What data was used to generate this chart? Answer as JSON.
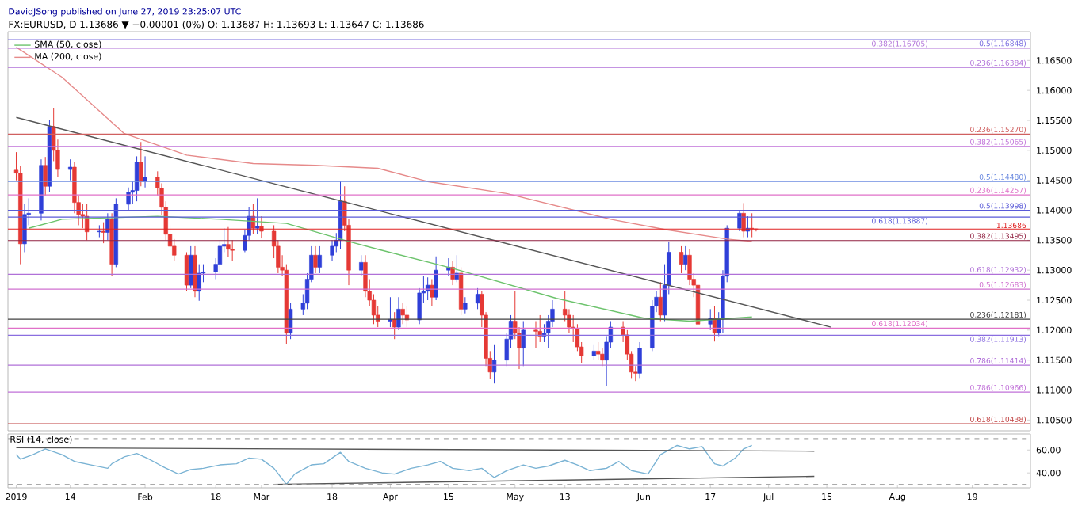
{
  "chart_data": [
    {
      "type": "candlestick",
      "title": "FX:EURUSD, D 1.13686 ▼ −0.00001 (0%) O: 1.13687 H: 1.13693 L: 1.13647 C: 1.13686",
      "annotations": [
        "DavidJSong published on June 27, 2019 23:25:07 UTC"
      ],
      "x": [
        "2019-01-01",
        "2019-01-02",
        "2019-01-03",
        "2019-01-04",
        "2019-01-07",
        "2019-01-08",
        "2019-01-09",
        "2019-01-10",
        "2019-01-11",
        "2019-01-14",
        "2019-01-15",
        "2019-01-16",
        "2019-01-17",
        "2019-01-18",
        "2019-01-21",
        "2019-01-22",
        "2019-01-23",
        "2019-01-24",
        "2019-01-25",
        "2019-01-28",
        "2019-01-29",
        "2019-01-30",
        "2019-01-31",
        "2019-02-01",
        "2019-02-04",
        "2019-02-05",
        "2019-02-06",
        "2019-02-07",
        "2019-02-08",
        "2019-02-11",
        "2019-02-12",
        "2019-02-13",
        "2019-02-14",
        "2019-02-15",
        "2019-02-18",
        "2019-02-19",
        "2019-02-20",
        "2019-02-21",
        "2019-02-22",
        "2019-02-25",
        "2019-02-26",
        "2019-02-27",
        "2019-02-28",
        "2019-03-01",
        "2019-03-04",
        "2019-03-05",
        "2019-03-06",
        "2019-03-07",
        "2019-03-08",
        "2019-03-11",
        "2019-03-12",
        "2019-03-13",
        "2019-03-14",
        "2019-03-15",
        "2019-03-18",
        "2019-03-19",
        "2019-03-20",
        "2019-03-21",
        "2019-03-22",
        "2019-03-25",
        "2019-03-26",
        "2019-03-27",
        "2019-03-28",
        "2019-03-29",
        "2019-04-01",
        "2019-04-02",
        "2019-04-03",
        "2019-04-04",
        "2019-04-05",
        "2019-04-08",
        "2019-04-09",
        "2019-04-10",
        "2019-04-11",
        "2019-04-12",
        "2019-04-15",
        "2019-04-16",
        "2019-04-17",
        "2019-04-18",
        "2019-04-19",
        "2019-04-22",
        "2019-04-23",
        "2019-04-24",
        "2019-04-25",
        "2019-04-26",
        "2019-04-29",
        "2019-04-30",
        "2019-05-01",
        "2019-05-02",
        "2019-05-03",
        "2019-05-06",
        "2019-05-07",
        "2019-05-08",
        "2019-05-09",
        "2019-05-10",
        "2019-05-13",
        "2019-05-14",
        "2019-05-15",
        "2019-05-16",
        "2019-05-17",
        "2019-05-20",
        "2019-05-21",
        "2019-05-22",
        "2019-05-23",
        "2019-05-24",
        "2019-05-27",
        "2019-05-28",
        "2019-05-29",
        "2019-05-30",
        "2019-05-31",
        "2019-06-03",
        "2019-06-04",
        "2019-06-05",
        "2019-06-06",
        "2019-06-07",
        "2019-06-10",
        "2019-06-11",
        "2019-06-12",
        "2019-06-13",
        "2019-06-14",
        "2019-06-17",
        "2019-06-18",
        "2019-06-19",
        "2019-06-20",
        "2019-06-21",
        "2019-06-24",
        "2019-06-25",
        "2019-06-26",
        "2019-06-27",
        "2019-06-28"
      ],
      "ohlc": [
        [
          1.1467,
          1.1497,
          1.145,
          1.1462
        ],
        [
          1.1462,
          1.1474,
          1.131,
          1.1344
        ],
        [
          1.1344,
          1.141,
          1.133,
          1.1393
        ],
        [
          1.1393,
          1.142,
          1.1375,
          1.1395
        ],
        [
          1.1395,
          1.1485,
          1.1383,
          1.1475
        ],
        [
          1.1475,
          1.1489,
          1.1425,
          1.144
        ],
        [
          1.144,
          1.155,
          1.143,
          1.154
        ],
        [
          1.154,
          1.157,
          1.1482,
          1.15
        ],
        [
          1.15,
          1.1518,
          1.1455,
          1.1468
        ],
        [
          1.1468,
          1.1485,
          1.145,
          1.1472
        ],
        [
          1.1472,
          1.148,
          1.1395,
          1.1413
        ],
        [
          1.1413,
          1.1425,
          1.1375,
          1.1393
        ],
        [
          1.1393,
          1.141,
          1.137,
          1.139
        ],
        [
          1.139,
          1.141,
          1.135,
          1.1364
        ],
        [
          1.1364,
          1.1375,
          1.1355,
          1.1365
        ],
        [
          1.1365,
          1.138,
          1.1345,
          1.1363
        ],
        [
          1.1363,
          1.1395,
          1.135,
          1.1385
        ],
        [
          1.1385,
          1.1395,
          1.129,
          1.131
        ],
        [
          1.131,
          1.142,
          1.1305,
          1.141
        ],
        [
          1.141,
          1.1438,
          1.14,
          1.143
        ],
        [
          1.143,
          1.1448,
          1.141,
          1.1433
        ],
        [
          1.1433,
          1.149,
          1.1415,
          1.148
        ],
        [
          1.148,
          1.1514,
          1.144,
          1.1448
        ],
        [
          1.1448,
          1.149,
          1.1438,
          1.1455
        ],
        [
          1.1455,
          1.1465,
          1.1425,
          1.1437
        ],
        [
          1.1437,
          1.1445,
          1.1392,
          1.1405
        ],
        [
          1.1405,
          1.1415,
          1.135,
          1.136
        ],
        [
          1.136,
          1.1375,
          1.1325,
          1.134
        ],
        [
          1.134,
          1.1352,
          1.1315,
          1.1325
        ],
        [
          1.1325,
          1.133,
          1.1265,
          1.1275
        ],
        [
          1.1275,
          1.134,
          1.127,
          1.1325
        ],
        [
          1.1325,
          1.134,
          1.1255,
          1.1265
        ],
        [
          1.1265,
          1.131,
          1.1249,
          1.1295
        ],
        [
          1.1295,
          1.131,
          1.128,
          1.1297
        ],
        [
          1.1297,
          1.132,
          1.1285,
          1.131
        ],
        [
          1.131,
          1.135,
          1.1295,
          1.134
        ],
        [
          1.134,
          1.137,
          1.133,
          1.1343
        ],
        [
          1.1343,
          1.1372,
          1.1322,
          1.1335
        ],
        [
          1.1335,
          1.135,
          1.1315,
          1.1333
        ],
        [
          1.1333,
          1.1368,
          1.133,
          1.1358
        ],
        [
          1.1358,
          1.1405,
          1.135,
          1.139
        ],
        [
          1.139,
          1.141,
          1.136,
          1.137
        ],
        [
          1.137,
          1.142,
          1.136,
          1.1373
        ],
        [
          1.1373,
          1.139,
          1.1353,
          1.1365
        ],
        [
          1.1365,
          1.1375,
          1.132,
          1.134
        ],
        [
          1.134,
          1.135,
          1.1295,
          1.1305
        ],
        [
          1.1305,
          1.1325,
          1.129,
          1.13
        ],
        [
          1.13,
          1.131,
          1.1176,
          1.1195
        ],
        [
          1.1195,
          1.1245,
          1.1185,
          1.1235
        ],
        [
          1.1235,
          1.126,
          1.1225,
          1.1245
        ],
        [
          1.1245,
          1.1295,
          1.1235,
          1.1285
        ],
        [
          1.1285,
          1.134,
          1.128,
          1.1325
        ],
        [
          1.1325,
          1.134,
          1.1295,
          1.1305
        ],
        [
          1.1305,
          1.134,
          1.1295,
          1.1325
        ],
        [
          1.1325,
          1.135,
          1.1315,
          1.134
        ],
        [
          1.134,
          1.1362,
          1.133,
          1.135
        ],
        [
          1.135,
          1.1448,
          1.1335,
          1.1415
        ],
        [
          1.1415,
          1.144,
          1.1365,
          1.1375
        ],
        [
          1.1375,
          1.1385,
          1.1275,
          1.13
        ],
        [
          1.13,
          1.1325,
          1.129,
          1.1313
        ],
        [
          1.1313,
          1.1325,
          1.1255,
          1.1265
        ],
        [
          1.1265,
          1.1285,
          1.124,
          1.125
        ],
        [
          1.125,
          1.126,
          1.121,
          1.1225
        ],
        [
          1.1225,
          1.124,
          1.1205,
          1.1215
        ],
        [
          1.1215,
          1.1255,
          1.1205,
          1.1218
        ],
        [
          1.1218,
          1.123,
          1.1185,
          1.1205
        ],
        [
          1.1205,
          1.1255,
          1.12,
          1.1235
        ],
        [
          1.1235,
          1.1245,
          1.121,
          1.1225
        ],
        [
          1.1225,
          1.124,
          1.1205,
          1.1217
        ],
        [
          1.1217,
          1.127,
          1.121,
          1.1262
        ],
        [
          1.1262,
          1.129,
          1.1245,
          1.1265
        ],
        [
          1.1265,
          1.1288,
          1.125,
          1.1275
        ],
        [
          1.1275,
          1.1285,
          1.124,
          1.1255
        ],
        [
          1.1255,
          1.1323,
          1.125,
          1.13
        ],
        [
          1.13,
          1.132,
          1.129,
          1.1305
        ],
        [
          1.1305,
          1.1315,
          1.1275,
          1.1285
        ],
        [
          1.1285,
          1.1325,
          1.128,
          1.1295
        ],
        [
          1.1295,
          1.1305,
          1.1225,
          1.1235
        ],
        [
          1.1235,
          1.1255,
          1.1228,
          1.1245
        ],
        [
          1.1245,
          1.127,
          1.1235,
          1.126
        ],
        [
          1.126,
          1.1265,
          1.1205,
          1.1225
        ],
        [
          1.1225,
          1.123,
          1.114,
          1.1153
        ],
        [
          1.1153,
          1.1165,
          1.1118,
          1.113
        ],
        [
          1.113,
          1.1175,
          1.1111,
          1.115
        ],
        [
          1.115,
          1.1195,
          1.114,
          1.1185
        ],
        [
          1.1185,
          1.1225,
          1.117,
          1.1215
        ],
        [
          1.1215,
          1.1265,
          1.1185,
          1.1195
        ],
        [
          1.1195,
          1.1205,
          1.1135,
          1.117
        ],
        [
          1.117,
          1.1215,
          1.114,
          1.12
        ],
        [
          1.12,
          1.1215,
          1.117,
          1.1198
        ],
        [
          1.1198,
          1.1225,
          1.118,
          1.119
        ],
        [
          1.119,
          1.121,
          1.118,
          1.1195
        ],
        [
          1.1195,
          1.1225,
          1.117,
          1.1215
        ],
        [
          1.1215,
          1.125,
          1.1205,
          1.1235
        ],
        [
          1.1235,
          1.1265,
          1.1215,
          1.1225
        ],
        [
          1.1225,
          1.1235,
          1.1195,
          1.1205
        ],
        [
          1.1205,
          1.1225,
          1.118,
          1.1203
        ],
        [
          1.1203,
          1.121,
          1.1165,
          1.1172
        ],
        [
          1.1172,
          1.118,
          1.1145,
          1.1157
        ],
        [
          1.1157,
          1.1175,
          1.115,
          1.1165
        ],
        [
          1.1165,
          1.118,
          1.115,
          1.116
        ],
        [
          1.116,
          1.117,
          1.114,
          1.115
        ],
        [
          1.115,
          1.119,
          1.1107,
          1.118
        ],
        [
          1.118,
          1.1215,
          1.117,
          1.1205
        ],
        [
          1.1205,
          1.1215,
          1.118,
          1.1192
        ],
        [
          1.1192,
          1.12,
          1.115,
          1.116
        ],
        [
          1.116,
          1.1165,
          1.112,
          1.113
        ],
        [
          1.113,
          1.114,
          1.1115,
          1.1128
        ],
        [
          1.1128,
          1.118,
          1.112,
          1.117
        ],
        [
          1.117,
          1.125,
          1.1165,
          1.124
        ],
        [
          1.124,
          1.1265,
          1.123,
          1.1255
        ],
        [
          1.1255,
          1.128,
          1.1215,
          1.1225
        ],
        [
          1.1225,
          1.131,
          1.1215,
          1.1275
        ],
        [
          1.1275,
          1.1348,
          1.126,
          1.133
        ],
        [
          1.133,
          1.134,
          1.1295,
          1.131
        ],
        [
          1.131,
          1.134,
          1.13,
          1.1325
        ],
        [
          1.1325,
          1.1335,
          1.1275,
          1.1285
        ],
        [
          1.1285,
          1.1295,
          1.1255,
          1.1275
        ],
        [
          1.1275,
          1.128,
          1.12,
          1.121
        ],
        [
          1.121,
          1.1235,
          1.12,
          1.122
        ],
        [
          1.122,
          1.124,
          1.1181,
          1.1195
        ],
        [
          1.1195,
          1.123,
          1.119,
          1.122
        ],
        [
          1.122,
          1.13,
          1.1195,
          1.129
        ],
        [
          1.129,
          1.1375,
          1.128,
          1.137
        ],
        [
          1.137,
          1.14,
          1.1365,
          1.1395
        ],
        [
          1.1395,
          1.1412,
          1.1355,
          1.1365
        ],
        [
          1.1365,
          1.139,
          1.1355,
          1.137
        ],
        [
          1.137,
          1.1395,
          1.1355,
          1.1369
        ],
        [
          1.13687,
          1.13693,
          1.13647,
          1.13686
        ]
      ],
      "colors": [
        "#e53935",
        "#e53935",
        "#2f3fd8",
        "#2f3fd8",
        "#2f3fd8",
        "#e53935",
        "#2f3fd8",
        "#e53935",
        "#e53935",
        "#2f3fd8",
        "#e53935",
        "#e53935",
        "#e53935",
        "#e53935",
        "#2f3fd8",
        "#e53935",
        "#2f3fd8",
        "#e53935",
        "#2f3fd8",
        "#2f3fd8",
        "#2f3fd8",
        "#2f3fd8",
        "#e53935",
        "#2f3fd8",
        "#e53935",
        "#e53935",
        "#e53935",
        "#e53935",
        "#e53935",
        "#e53935",
        "#2f3fd8",
        "#e53935",
        "#2f3fd8",
        "#2f3fd8",
        "#2f3fd8",
        "#2f3fd8",
        "#2f3fd8",
        "#e53935",
        "#e53935",
        "#2f3fd8",
        "#2f3fd8",
        "#e53935",
        "#2f3fd8",
        "#e53935",
        "#e53935",
        "#e53935",
        "#e53935",
        "#e53935",
        "#2f3fd8",
        "#2f3fd8",
        "#2f3fd8",
        "#2f3fd8",
        "#e53935",
        "#2f3fd8",
        "#2f3fd8",
        "#2f3fd8",
        "#2f3fd8",
        "#e53935",
        "#e53935",
        "#2f3fd8",
        "#e53935",
        "#e53935",
        "#e53935",
        "#e53935",
        "#2f3fd8",
        "#e53935",
        "#2f3fd8",
        "#e53935",
        "#e53935",
        "#2f3fd8",
        "#2f3fd8",
        "#2f3fd8",
        "#e53935",
        "#2f3fd8",
        "#2f3fd8",
        "#e53935",
        "#2f3fd8",
        "#e53935",
        "#2f3fd8",
        "#2f3fd8",
        "#e53935",
        "#e53935",
        "#e53935",
        "#2f3fd8",
        "#2f3fd8",
        "#2f3fd8",
        "#e53935",
        "#e53935",
        "#2f3fd8",
        "#e53935",
        "#e53935",
        "#2f3fd8",
        "#2f3fd8",
        "#2f3fd8",
        "#e53935",
        "#e53935",
        "#e53935",
        "#e53935",
        "#e53935",
        "#2f3fd8",
        "#e53935",
        "#e53935",
        "#2f3fd8",
        "#2f3fd8",
        "#e53935",
        "#e53935",
        "#e53935",
        "#e53935",
        "#2f3fd8",
        "#2f3fd8",
        "#2f3fd8",
        "#e53935",
        "#2f3fd8",
        "#2f3fd8",
        "#e53935",
        "#2f3fd8",
        "#e53935",
        "#e53935",
        "#e53935",
        "#2f3fd8",
        "#e53935",
        "#2f3fd8",
        "#2f3fd8",
        "#2f3fd8",
        "#2f3fd8",
        "#e53935",
        "#2f3fd8",
        "#e53935",
        "#e53935"
      ],
      "series": [
        {
          "type": "line",
          "name": "SMA (50, close)",
          "color": "#6cc36c",
          "x": [
            "2019-01-04",
            "2019-01-12",
            "2019-02-04",
            "2019-02-19",
            "2019-03-07",
            "2019-03-22",
            "2019-03-29",
            "2019-04-16",
            "2019-05-11",
            "2019-06-01",
            "2019-06-12",
            "2019-06-27"
          ],
          "values": [
            1.137,
            1.1385,
            1.139,
            1.1385,
            1.1378,
            1.1348,
            1.1335,
            1.1303,
            1.1253,
            1.122,
            1.1215,
            1.1222
          ]
        },
        {
          "type": "line",
          "name": "MA (200, close)",
          "color": "#e68a8a",
          "x": [
            "2019-01-01",
            "2019-01-12",
            "2019-01-27",
            "2019-02-11",
            "2019-02-27",
            "2019-03-14",
            "2019-03-29",
            "2019-04-10",
            "2019-04-29",
            "2019-05-24",
            "2019-06-06",
            "2019-06-21",
            "2019-06-27"
          ],
          "values": [
            1.1672,
            1.1622,
            1.1528,
            1.1492,
            1.1478,
            1.1475,
            1.147,
            1.1448,
            1.1428,
            1.1385,
            1.1368,
            1.1352,
            1.1348
          ]
        },
        {
          "type": "line",
          "color": "#555555",
          "x": [
            "2019-01-01",
            "2019-07-16"
          ],
          "values": [
            1.1555,
            1.1205
          ]
        }
      ],
      "xlim": [
        "2018-12-30",
        "2019-09-02"
      ],
      "ylim": [
        1.1032,
        1.1698
      ],
      "yticks": [
        {
          "value": 1.105,
          "label": "1.10500"
        },
        {
          "value": 1.11,
          "label": "1.11000"
        },
        {
          "value": 1.115,
          "label": "1.11500"
        },
        {
          "value": 1.12,
          "label": "1.12000"
        },
        {
          "value": 1.125,
          "label": "1.12500"
        },
        {
          "value": 1.13,
          "label": "1.13000"
        },
        {
          "value": 1.135,
          "label": "1.13500"
        },
        {
          "value": 1.14,
          "label": "1.14000"
        },
        {
          "value": 1.145,
          "label": "1.14500"
        },
        {
          "value": 1.15,
          "label": "1.15000"
        },
        {
          "value": 1.155,
          "label": "1.15500"
        },
        {
          "value": 1.16,
          "label": "1.16000"
        },
        {
          "value": 1.165,
          "label": "1.16500"
        }
      ],
      "tick_labels": "y",
      "legend": "top left",
      "ref_lines": [
        {
          "axis": "y",
          "value": 1.16848,
          "label": "0.5(1.16848)",
          "color": "#7a6ee0"
        },
        {
          "axis": "y",
          "value": 1.16705,
          "label": "0.382(1.16705)",
          "color": "#b070d8"
        },
        {
          "axis": "y",
          "value": 1.16384,
          "label": "0.236(1.16384)",
          "color": "#b070d8"
        },
        {
          "axis": "y",
          "value": 1.1527,
          "label": "0.236(1.15270)",
          "color": "#d06060"
        },
        {
          "axis": "y",
          "value": 1.15065,
          "label": "0.382(1.15065)",
          "color": "#c070d8"
        },
        {
          "axis": "y",
          "value": 1.1448,
          "label": "0.5(1.14480)",
          "color": "#6c8be0"
        },
        {
          "axis": "y",
          "value": 1.14257,
          "label": "0.236(1.14257)",
          "color": "#e070c8"
        },
        {
          "axis": "y",
          "value": 1.13998,
          "label": "0.5(1.13998)",
          "color": "#5a5ad8"
        },
        {
          "axis": "y",
          "value": 1.13887,
          "label": "0.618(1.13887)",
          "color": "#5a5ad8"
        },
        {
          "axis": "y",
          "value": 1.13686,
          "label": "1.13686",
          "color": "#e02020"
        },
        {
          "axis": "y",
          "value": 1.13495,
          "label": "0.382(1.13495)",
          "color": "#902040"
        },
        {
          "axis": "y",
          "value": 1.12932,
          "label": "0.618(1.12932)",
          "color": "#b070d8"
        },
        {
          "axis": "y",
          "value": 1.12683,
          "label": "0.5(1.12683)",
          "color": "#d070d0"
        },
        {
          "axis": "y",
          "value": 1.12181,
          "label": "0.236(1.12181)",
          "color": "#404040"
        },
        {
          "axis": "y",
          "value": 1.12034,
          "label": "0.618(1.12034)",
          "color": "#e070c8"
        },
        {
          "axis": "y",
          "value": 1.11913,
          "label": "0.382(1.11913)",
          "color": "#8a6ee0"
        },
        {
          "axis": "y",
          "value": 1.11414,
          "label": "0.786(1.11414)",
          "color": "#b070d8"
        },
        {
          "axis": "y",
          "value": 1.10966,
          "label": "0.786(1.10966)",
          "color": "#c070d8"
        },
        {
          "axis": "y",
          "value": 1.10438,
          "label": "0.618(1.10438)",
          "color": "#c04040"
        }
      ]
    },
    {
      "type": "line",
      "title": "RSI (14, close)",
      "series": [
        {
          "color": "#7ab3d4",
          "x": [
            "2019-01-01",
            "2019-01-02",
            "2019-01-05",
            "2019-01-08",
            "2019-01-12",
            "2019-01-15",
            "2019-01-19",
            "2019-01-23",
            "2019-01-24",
            "2019-01-27",
            "2019-01-30",
            "2019-02-02",
            "2019-02-05",
            "2019-02-09",
            "2019-02-12",
            "2019-02-15",
            "2019-02-19",
            "2019-02-23",
            "2019-02-26",
            "2019-03-01",
            "2019-03-04",
            "2019-03-07",
            "2019-03-09",
            "2019-03-13",
            "2019-03-16",
            "2019-03-20",
            "2019-03-22",
            "2019-03-26",
            "2019-03-30",
            "2019-04-02",
            "2019-04-06",
            "2019-04-10",
            "2019-04-13",
            "2019-04-16",
            "2019-04-20",
            "2019-04-23",
            "2019-04-26",
            "2019-04-29",
            "2019-05-03",
            "2019-05-06",
            "2019-05-09",
            "2019-05-13",
            "2019-05-16",
            "2019-05-19",
            "2019-05-23",
            "2019-05-26",
            "2019-05-29",
            "2019-06-02",
            "2019-06-05",
            "2019-06-09",
            "2019-06-12",
            "2019-06-15",
            "2019-06-18",
            "2019-06-20",
            "2019-06-23",
            "2019-06-25",
            "2019-06-27"
          ],
          "values": [
            56,
            52,
            56,
            61,
            56,
            50,
            47,
            44,
            48,
            54,
            57,
            52,
            46,
            39,
            43,
            44,
            47,
            48,
            53,
            52,
            44,
            30,
            39,
            47,
            48,
            58,
            50,
            44,
            40,
            39,
            44,
            47,
            50,
            44,
            42,
            44,
            36,
            42,
            47,
            44,
            46,
            51,
            47,
            42,
            44,
            50,
            42,
            39,
            56,
            64,
            61,
            63,
            48,
            46,
            53,
            61,
            64
          ]
        },
        {
          "color": "#555555",
          "x": [
            "2019-01-01",
            "2019-07-12"
          ],
          "values": [
            62,
            59
          ]
        },
        {
          "color": "#555555",
          "x": [
            "2019-03-04",
            "2019-07-12"
          ],
          "values": [
            30,
            37
          ]
        }
      ],
      "xlim": [
        "2018-12-30",
        "2019-09-02"
      ],
      "ylim": [
        27,
        74
      ],
      "xticks": [
        {
          "value": "2019-01-01",
          "label": "2019"
        },
        {
          "value": "2019-01-14",
          "label": "14"
        },
        {
          "value": "2019-02-01",
          "label": "Feb"
        },
        {
          "value": "2019-02-18",
          "label": "18"
        },
        {
          "value": "2019-03-01",
          "label": "Mar"
        },
        {
          "value": "2019-03-18",
          "label": "18"
        },
        {
          "value": "2019-04-01",
          "label": "Apr"
        },
        {
          "value": "2019-04-15",
          "label": "15"
        },
        {
          "value": "2019-05-01",
          "label": "May"
        },
        {
          "value": "2019-05-13",
          "label": "13"
        },
        {
          "value": "2019-06-01",
          "label": "Jun"
        },
        {
          "value": "2019-06-17",
          "label": "17"
        },
        {
          "value": "2019-07-01",
          "label": "Jul"
        },
        {
          "value": "2019-07-15",
          "label": "15"
        },
        {
          "value": "2019-08-01",
          "label": "Aug"
        },
        {
          "value": "2019-08-19",
          "label": "19"
        }
      ],
      "yticks": [
        {
          "value": 60,
          "label": "60.00"
        },
        {
          "value": 40,
          "label": "40.00"
        }
      ],
      "ref_lines": [
        {
          "axis": "y",
          "value": 70,
          "color": "#aaaaaa",
          "line_style": "dashed"
        },
        {
          "axis": "y",
          "value": 30,
          "color": "#aaaaaa",
          "line_style": "dashed"
        }
      ]
    }
  ]
}
